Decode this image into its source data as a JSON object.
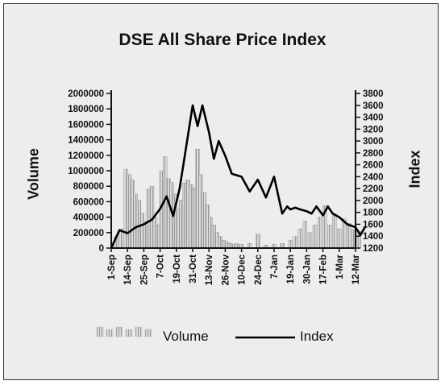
{
  "chart_data": {
    "type": "bar+line",
    "title": "DSE All Share Price Index",
    "ylabel_left": "Volume",
    "ylabel_right": "Index",
    "xlabel": "",
    "x_ticks": [
      "1-Sep",
      "14-Sep",
      "25-Sep",
      "7-Oct",
      "19-Oct",
      "31-Oct",
      "13-Nov",
      "26-Nov",
      "10-Dec",
      "24-Dec",
      "7-Jan",
      "19-Jan",
      "30-Jan",
      "17-Feb",
      "1-Mar",
      "12-Mar"
    ],
    "y_left_ticks": [
      "0",
      "200000",
      "400000",
      "600000",
      "800000",
      "1000000",
      "1200000",
      "1400000",
      "1600000",
      "1800000",
      "2000000"
    ],
    "y_left_lim": [
      0,
      2000000
    ],
    "y_right_ticks": [
      "1200",
      "1400",
      "1600",
      "1800",
      "2000",
      "2200",
      "2400",
      "2600",
      "2800",
      "3000",
      "3200",
      "3400",
      "3600",
      "3800"
    ],
    "y_right_lim": [
      1200,
      3800
    ],
    "legend": {
      "position": "bottom",
      "entries": [
        "Volume",
        "Index"
      ]
    },
    "series": [
      {
        "name": "Volume",
        "kind": "bar",
        "x": [
          0.3,
          0.6,
          0.9,
          1.1,
          1.3,
          1.5,
          1.7,
          1.9,
          2.1,
          2.3,
          2.5,
          2.7,
          2.9,
          3.1,
          3.3,
          3.5,
          3.7,
          3.9,
          4.1,
          4.3,
          4.5,
          4.7,
          4.9,
          5.1,
          5.3,
          5.5,
          5.7,
          5.9,
          6.1,
          6.3,
          6.5,
          6.7,
          6.9,
          7.1,
          7.3,
          7.5,
          7.7,
          8.0,
          8.5,
          9.0,
          9.5,
          10.0,
          10.5,
          11.0,
          11.3,
          11.6,
          11.9,
          12.2,
          12.5,
          12.8,
          13.1,
          13.4,
          13.7,
          14.0,
          14.3,
          14.6,
          14.9,
          15.2
        ],
        "values": [
          150000,
          250000,
          1020000,
          950000,
          880000,
          700000,
          620000,
          450000,
          350000,
          760000,
          800000,
          400000,
          300000,
          1000000,
          1180000,
          900000,
          850000,
          700000,
          500000,
          620000,
          840000,
          880000,
          820000,
          780000,
          1280000,
          950000,
          720000,
          560000,
          400000,
          300000,
          200000,
          150000,
          100000,
          80000,
          60000,
          50000,
          60000,
          50000,
          60000,
          180000,
          40000,
          50000,
          60000,
          100000,
          150000,
          250000,
          350000,
          200000,
          300000,
          400000,
          550000,
          300000,
          420000,
          250000,
          380000,
          320000,
          240000,
          220000
        ]
      },
      {
        "name": "Index",
        "kind": "line",
        "x": [
          0,
          0.5,
          1,
          1.5,
          2,
          2.5,
          3,
          3.4,
          3.8,
          4.2,
          4.6,
          5,
          5.3,
          5.6,
          6,
          6.3,
          6.6,
          7,
          7.4,
          8,
          8.5,
          9,
          9.5,
          10,
          10.5,
          10.8,
          11,
          11.3,
          11.6,
          12,
          12.3,
          12.6,
          13,
          13.3,
          13.6,
          14,
          14.5,
          15,
          15.3,
          15.6
        ],
        "values": [
          1200,
          1500,
          1450,
          1550,
          1600,
          1680,
          1860,
          2070,
          1740,
          2200,
          2900,
          3600,
          3250,
          3600,
          3150,
          2700,
          3000,
          2750,
          2450,
          2400,
          2150,
          2350,
          2050,
          2400,
          1780,
          1900,
          1850,
          1880,
          1850,
          1820,
          1780,
          1900,
          1750,
          1900,
          1780,
          1720,
          1600,
          1550,
          1420,
          1560
        ]
      }
    ]
  }
}
